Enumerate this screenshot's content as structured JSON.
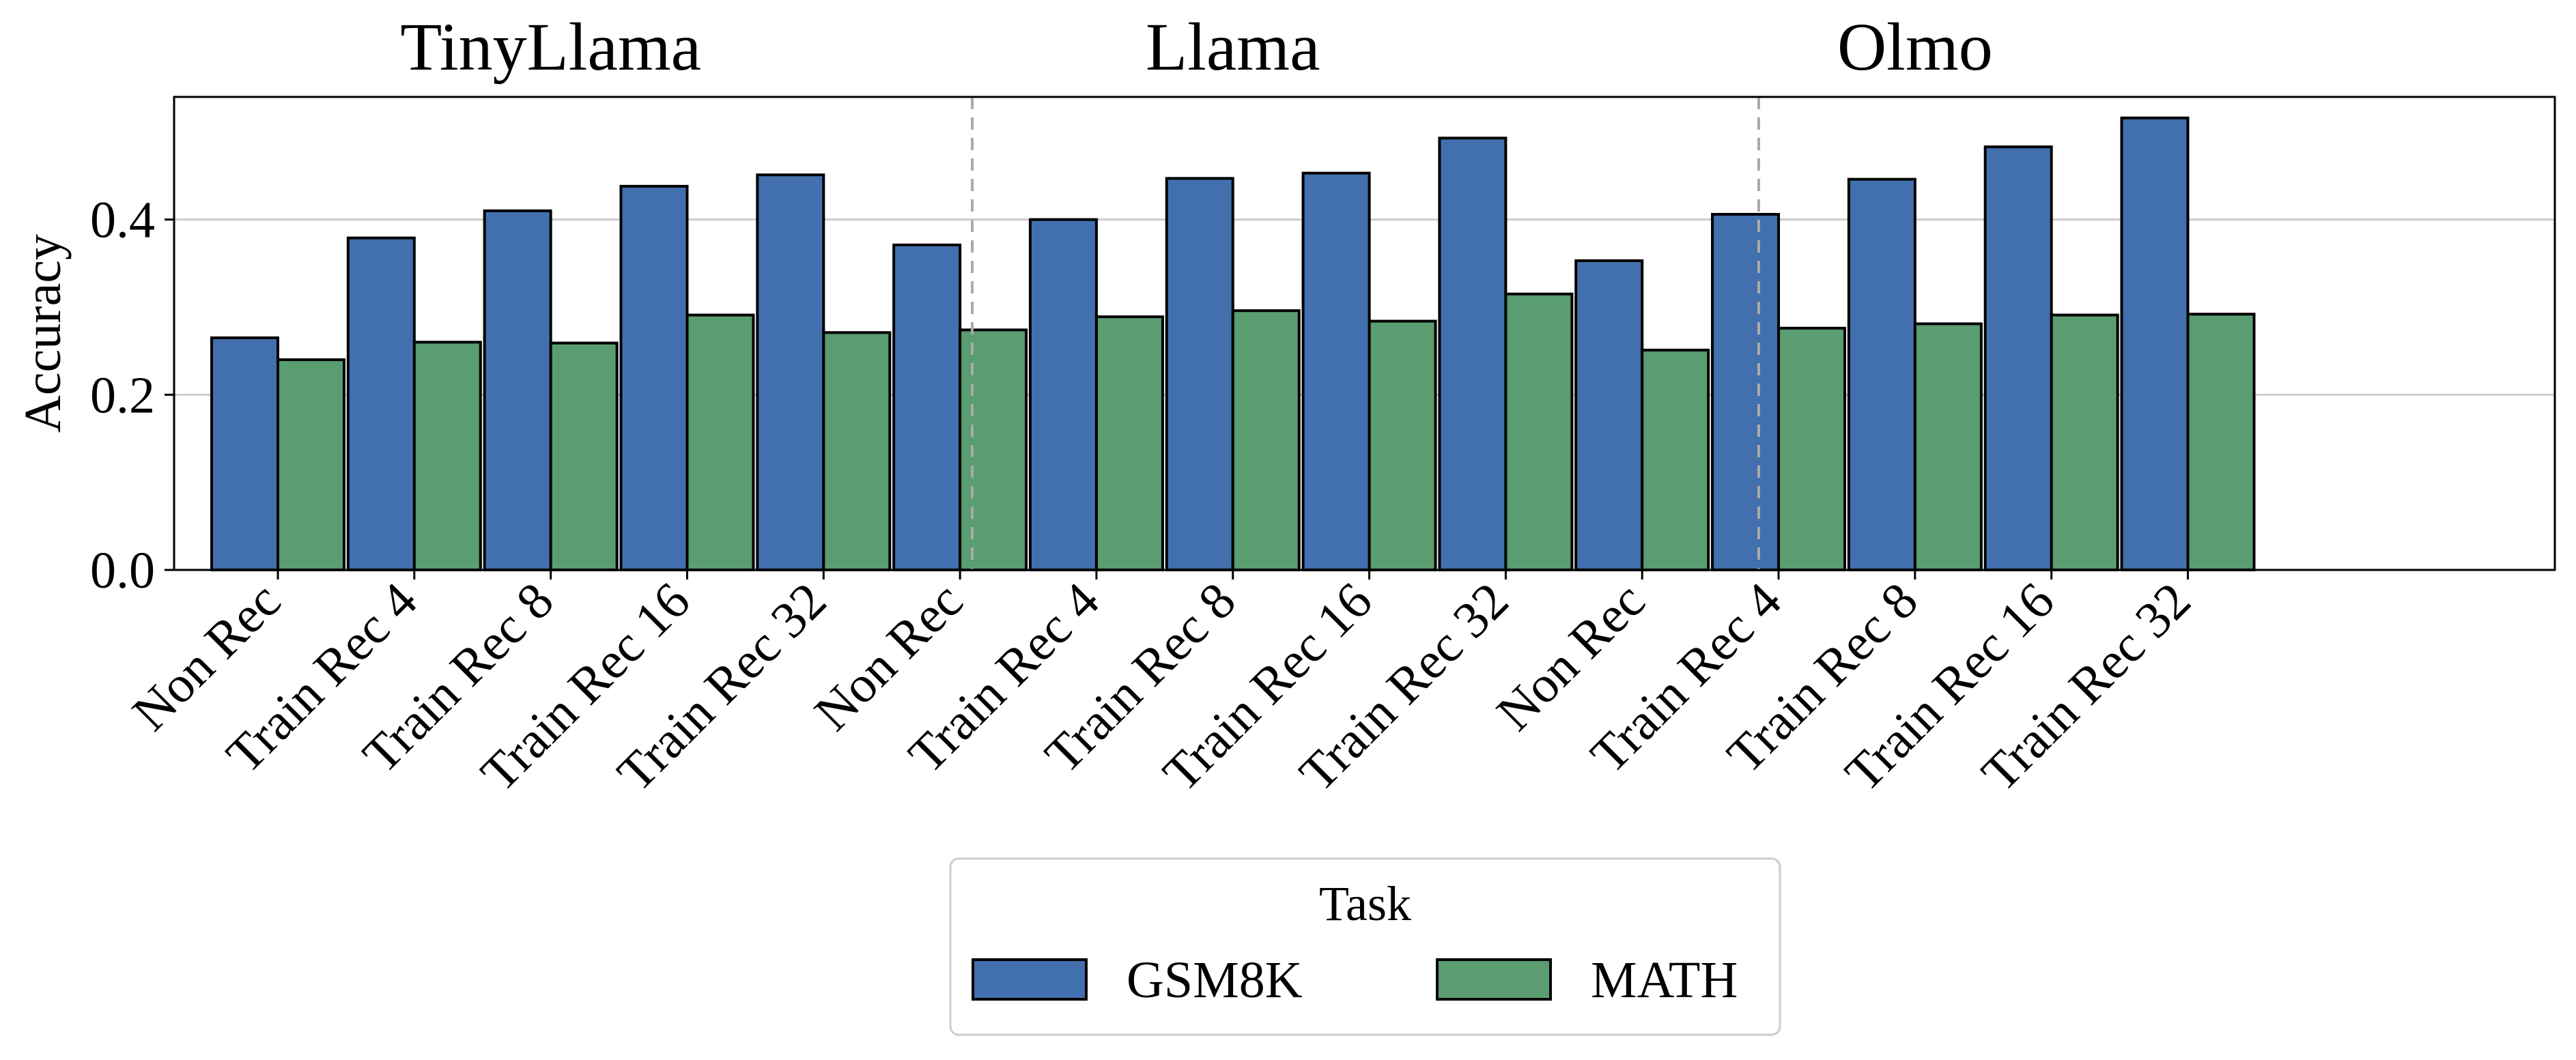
{
  "chart_data": {
    "type": "bar",
    "panels": [
      {
        "title": "TinyLlama",
        "categories": [
          "Non Rec",
          "Train Rec 4",
          "Train Rec 8",
          "Train Rec 16",
          "Train Rec 32"
        ],
        "series": [
          {
            "name": "GSM8K",
            "values": [
              0.265,
              0.379,
              0.41,
              0.438,
              0.451
            ]
          },
          {
            "name": "MATH",
            "values": [
              0.24,
              0.26,
              0.259,
              0.291,
              0.271
            ]
          }
        ]
      },
      {
        "title": "Llama",
        "categories": [
          "Non Rec",
          "Train Rec 4",
          "Train Rec 8",
          "Train Rec 16",
          "Train Rec 32"
        ],
        "series": [
          {
            "name": "GSM8K",
            "values": [
              0.371,
              0.4,
              0.447,
              0.453,
              0.493
            ]
          },
          {
            "name": "MATH",
            "values": [
              0.274,
              0.289,
              0.296,
              0.284,
              0.315
            ]
          }
        ]
      },
      {
        "title": "Olmo",
        "categories": [
          "Non Rec",
          "Train Rec 4",
          "Train Rec 8",
          "Train Rec 16",
          "Train Rec 32"
        ],
        "series": [
          {
            "name": "GSM8K",
            "values": [
              0.353,
              0.406,
              0.446,
              0.483,
              0.516
            ]
          },
          {
            "name": "MATH",
            "values": [
              0.251,
              0.276,
              0.281,
              0.291,
              0.292
            ]
          }
        ]
      }
    ],
    "ylabel": "Accuracy",
    "ylim": [
      0,
      0.54
    ],
    "yticks": [
      0.0,
      0.2,
      0.4
    ],
    "ytick_labels": [
      "0.0",
      "0.2",
      "0.4"
    ],
    "grid": "horizontal",
    "legend": {
      "title": "Task",
      "placement": "bottom-center",
      "entries": [
        {
          "name": "GSM8K",
          "color": "#4270ae"
        },
        {
          "name": "MATH",
          "color": "#599d70"
        }
      ]
    },
    "colors": {
      "GSM8K": "#4270ae",
      "MATH": "#599d70",
      "edge": "#000000",
      "grid": "#cccccc",
      "divider": "#aaaaaa"
    }
  }
}
